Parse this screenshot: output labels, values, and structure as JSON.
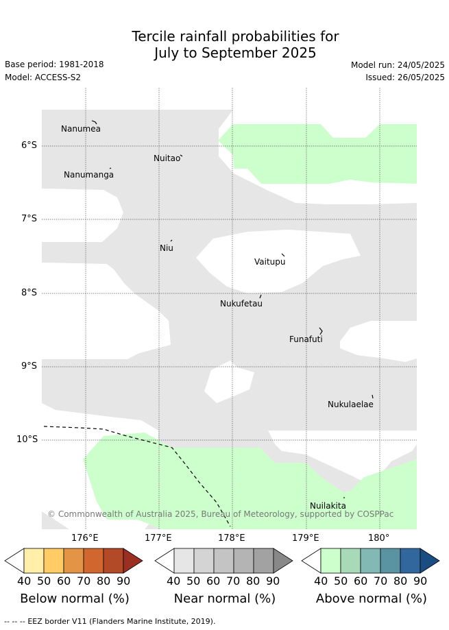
{
  "title": {
    "line1": "Tercile rainfall probabilities for",
    "line2": "July to September 2025"
  },
  "meta": {
    "base_period": "Base period: 1981-2018",
    "model": "Model: ACCESS-S2",
    "model_run": "Model run: 24/05/2025",
    "issued": "Issued: 26/05/2025"
  },
  "map": {
    "y_ticks": [
      "6°S",
      "7°S",
      "8°S",
      "9°S",
      "10°S"
    ],
    "x_ticks": [
      "176°E",
      "177°E",
      "178°E",
      "179°E",
      "180°"
    ],
    "islands": [
      "Nanumea",
      "Nuitao",
      "Nanumanga",
      "Niu",
      "Vaitupu",
      "Nukufetau",
      "Funafuti",
      "Nukulaelae",
      "Nuilakita"
    ],
    "copyright": "© Commonwealth of Australia 2025, Bureau of Meteorology, supported by COSPPac",
    "colors": {
      "near_normal_40": "#e6e6e6",
      "above_normal_40": "#ccffcc",
      "grid": "#555555",
      "eez": "#000000"
    }
  },
  "colorbars": [
    {
      "title": "Below normal (%)",
      "labels": [
        "40",
        "50",
        "60",
        "70",
        "80",
        "90"
      ],
      "colors": [
        "#ffffff",
        "#ffefa8",
        "#ffcc66",
        "#e39545",
        "#d2662f",
        "#b24a28",
        "#9a2f22"
      ]
    },
    {
      "title": "Near normal (%)",
      "labels": [
        "40",
        "50",
        "60",
        "70",
        "80",
        "90"
      ],
      "colors": [
        "#ffffff",
        "#e6e6e6",
        "#d4d4d4",
        "#c4c4c4",
        "#b4b4b4",
        "#a2a2a2",
        "#888888"
      ]
    },
    {
      "title": "Above normal (%)",
      "labels": [
        "40",
        "50",
        "60",
        "70",
        "80",
        "90"
      ],
      "colors": [
        "#ffffff",
        "#ccffcc",
        "#a8dab8",
        "#82b9b4",
        "#5a94a3",
        "#31679c",
        "#1a4d82"
      ]
    }
  ],
  "footer": {
    "legend_symbol": "-- -- --",
    "legend_text": "EEZ border V11 (Flanders Marine Institute, 2019)."
  }
}
